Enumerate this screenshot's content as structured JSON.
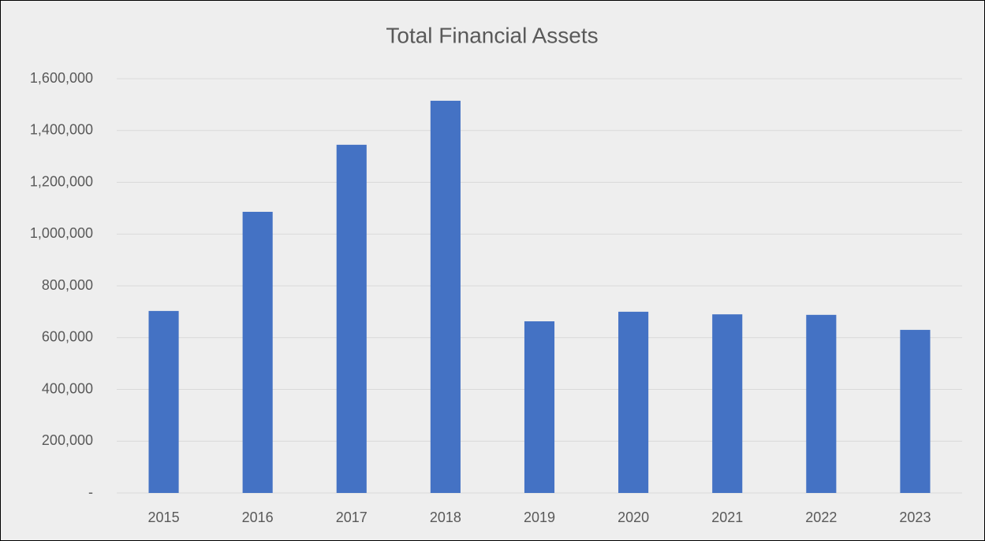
{
  "chart_data": {
    "type": "bar",
    "title": "Total Financial Assets",
    "categories": [
      "2015",
      "2016",
      "2017",
      "2018",
      "2019",
      "2020",
      "2021",
      "2022",
      "2023"
    ],
    "values": [
      703000,
      1086000,
      1345000,
      1515000,
      663000,
      700000,
      690000,
      688000,
      630000
    ],
    "color": "#4472c4",
    "ylim": [
      0,
      1600000
    ],
    "yticks": [
      {
        "value": 0,
        "label": "-"
      },
      {
        "value": 200000,
        "label": "200,000"
      },
      {
        "value": 400000,
        "label": "400,000"
      },
      {
        "value": 600000,
        "label": "600,000"
      },
      {
        "value": 800000,
        "label": "800,000"
      },
      {
        "value": 1000000,
        "label": "1,000,000"
      },
      {
        "value": 1200000,
        "label": "1,200,000"
      },
      {
        "value": 1400000,
        "label": "1,400,000"
      },
      {
        "value": 1600000,
        "label": "1,600,000"
      }
    ],
    "grid": true
  }
}
